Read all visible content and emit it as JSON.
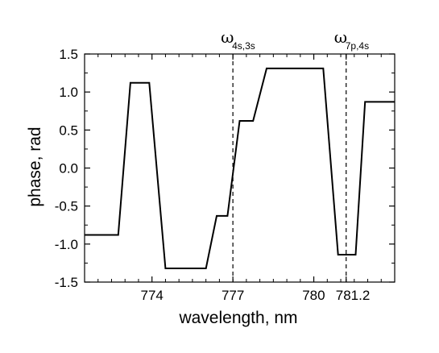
{
  "chart_data": {
    "type": "line",
    "xlabel": "wavelength, nm",
    "ylabel": "phase, rad",
    "xlim": [
      771.5,
      783.0
    ],
    "ylim": [
      -1.5,
      1.5
    ],
    "x_ticks": [
      774,
      777,
      780,
      781.2
    ],
    "x_tick_labels": [
      "774",
      "777",
      "780",
      "781.2"
    ],
    "y_ticks": [
      -1.5,
      -1.0,
      -0.5,
      0.0,
      0.5,
      1.0,
      1.5
    ],
    "y_tick_labels": [
      "-1.5",
      "-1.0",
      "-0.5",
      "0.0",
      "0.5",
      "1.0",
      "1.5"
    ],
    "series": [
      {
        "x": [
          771.5,
          772.75,
          773.2,
          773.9,
          774.5,
          776.0,
          776.4,
          776.8,
          777.25,
          777.75,
          778.25,
          780.35,
          780.9,
          781.55,
          781.9,
          783.0
        ],
        "y": [
          -0.88,
          -0.88,
          1.12,
          1.12,
          -1.32,
          -1.32,
          -0.63,
          -0.63,
          0.62,
          0.62,
          1.31,
          1.31,
          -1.14,
          -1.14,
          0.87,
          0.87
        ]
      }
    ],
    "annotations": [
      {
        "x": 777.0,
        "symbol": "ω",
        "subscript": "4s,3s"
      },
      {
        "x": 781.2,
        "symbol": "ω",
        "subscript": "7p,4s"
      }
    ],
    "grid": false,
    "line_color": "#000000"
  }
}
